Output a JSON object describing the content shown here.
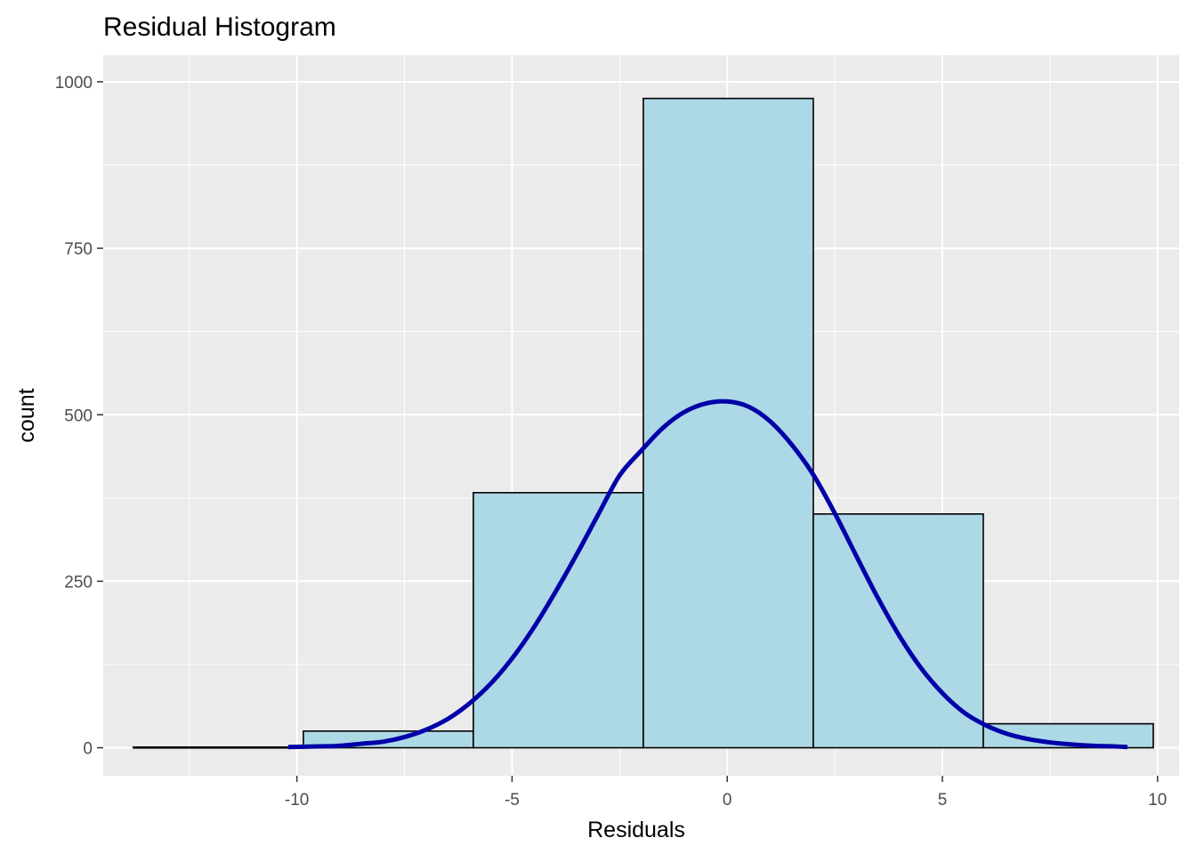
{
  "chart_data": {
    "type": "bar",
    "title": "Residual Histogram",
    "xlabel": "Residuals",
    "ylabel": "count",
    "xlim": [
      -14.5,
      10.5
    ],
    "ylim": [
      -42,
      1040
    ],
    "x_ticks": [
      -10,
      -5,
      0,
      5,
      10
    ],
    "x_tick_labels": [
      "-10",
      "-5",
      "0",
      "5",
      "10"
    ],
    "y_ticks": [
      0,
      250,
      500,
      750,
      1000
    ],
    "y_tick_labels": [
      "0",
      "250",
      "500",
      "750",
      "1000"
    ],
    "grid": true,
    "bins": [
      {
        "xmin": -13.8,
        "xmax": -9.85,
        "count": 1
      },
      {
        "xmin": -9.85,
        "xmax": -5.9,
        "count": 25
      },
      {
        "xmin": -5.9,
        "xmax": -1.95,
        "count": 383
      },
      {
        "xmin": -1.95,
        "xmax": 2.0,
        "count": 975
      },
      {
        "xmin": 2.0,
        "xmax": 5.95,
        "count": 351
      },
      {
        "xmin": 5.95,
        "xmax": 9.9,
        "count": 36
      }
    ],
    "curve": {
      "type": "line",
      "x": [
        -10.2,
        -9.5,
        -9,
        -8.5,
        -8,
        -7.5,
        -7,
        -6.5,
        -6,
        -5.5,
        -5,
        -4.5,
        -4,
        -3.5,
        -3,
        -2.5,
        -2,
        -1.5,
        -1,
        -0.5,
        0,
        0.5,
        1,
        1.5,
        2,
        2.5,
        3,
        3.5,
        4,
        4.5,
        5,
        5.5,
        6,
        6.5,
        7,
        7.5,
        8,
        8.5,
        9,
        9.3
      ],
      "y": [
        1,
        2,
        3,
        6,
        9,
        16,
        27,
        43,
        66,
        96,
        134,
        180,
        233,
        290,
        350,
        409,
        446,
        480,
        504,
        517,
        520,
        512,
        490,
        455,
        410,
        352,
        288,
        225,
        168,
        120,
        82,
        53,
        34,
        21,
        13,
        8,
        5,
        3,
        2,
        1
      ]
    },
    "colors": {
      "panel_background": "#ebebeb",
      "grid_major": "#ffffff",
      "bar_fill": "#add8e6",
      "bar_stroke": "#000000",
      "curve": "#0000a8"
    }
  }
}
